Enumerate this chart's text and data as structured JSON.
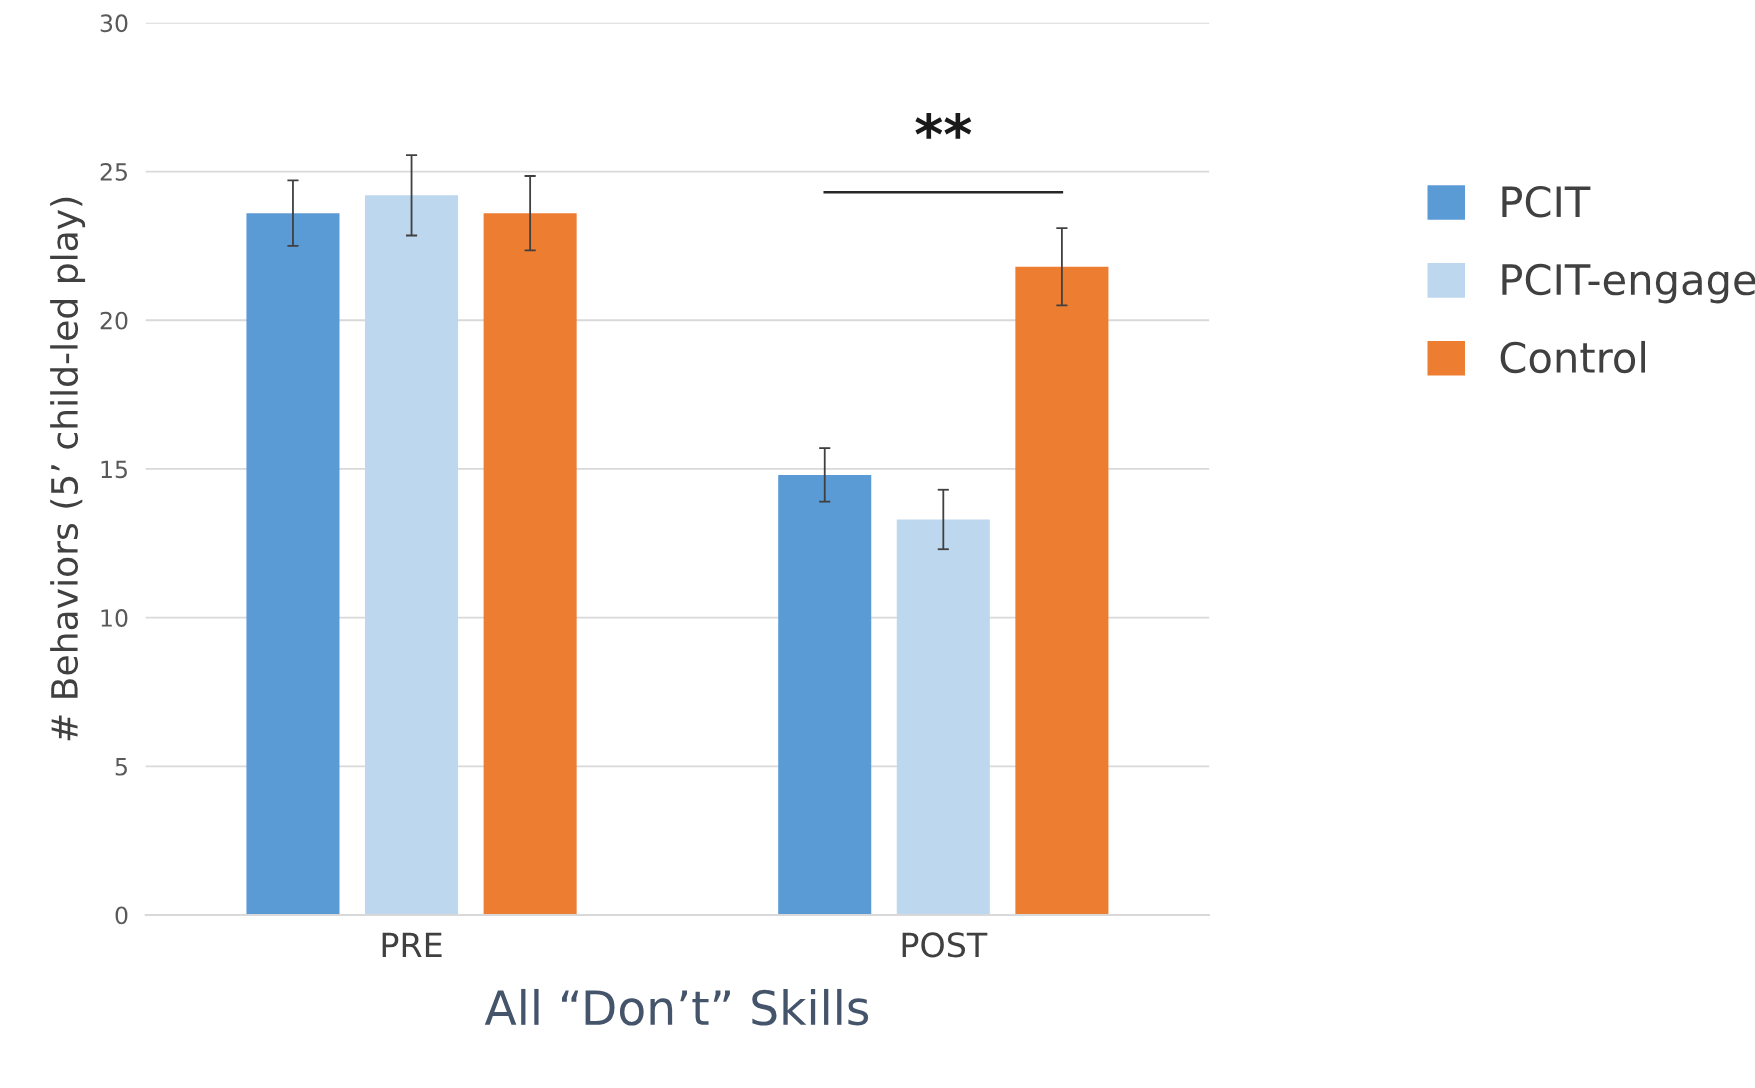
{
  "chart_data": {
    "type": "bar",
    "categories": [
      "PRE",
      "POST"
    ],
    "series": [
      {
        "name": "PCIT",
        "color": "#5b9bd5",
        "values": [
          23.6,
          14.8
        ],
        "errors": [
          1.1,
          0.9
        ]
      },
      {
        "name": "PCIT-engage",
        "color": "#bdd7ee",
        "values": [
          24.2,
          13.3
        ],
        "errors": [
          1.35,
          1.0
        ]
      },
      {
        "name": "Control",
        "color": "#ed7d31",
        "values": [
          23.6,
          21.8
        ],
        "errors": [
          1.25,
          1.3
        ]
      }
    ],
    "xlabel": "All “Don’t” Skills",
    "ylabel": "# Behaviors (5’ child-led play)",
    "ylim": [
      0,
      30
    ],
    "yticks": [
      0,
      5,
      10,
      15,
      20,
      25,
      30
    ],
    "grid": "y",
    "legend": "right",
    "annotations": [
      "**"
    ]
  }
}
